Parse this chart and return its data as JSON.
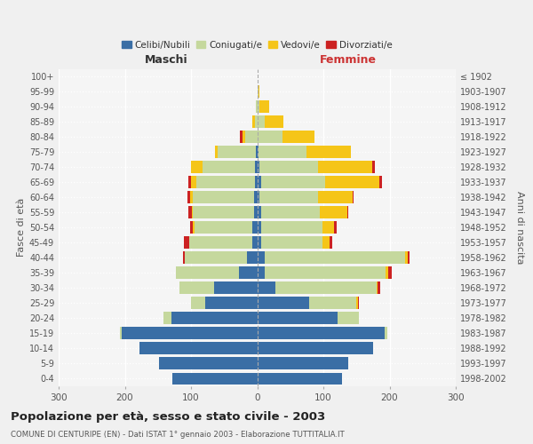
{
  "age_groups": [
    "0-4",
    "5-9",
    "10-14",
    "15-19",
    "20-24",
    "25-29",
    "30-34",
    "35-39",
    "40-44",
    "45-49",
    "50-54",
    "55-59",
    "60-64",
    "65-69",
    "70-74",
    "75-79",
    "80-84",
    "85-89",
    "90-94",
    "95-99",
    "100+"
  ],
  "birth_years": [
    "1998-2002",
    "1993-1997",
    "1988-1992",
    "1983-1987",
    "1978-1982",
    "1973-1977",
    "1968-1972",
    "1963-1967",
    "1958-1962",
    "1953-1957",
    "1948-1952",
    "1943-1947",
    "1938-1942",
    "1933-1937",
    "1928-1932",
    "1923-1927",
    "1918-1922",
    "1913-1917",
    "1908-1912",
    "1903-1907",
    "≤ 1902"
  ],
  "male": {
    "celibi": [
      128,
      148,
      178,
      205,
      130,
      78,
      65,
      28,
      15,
      8,
      7,
      5,
      5,
      4,
      4,
      2,
      0,
      0,
      0,
      0,
      0
    ],
    "coniugati": [
      0,
      0,
      0,
      3,
      12,
      22,
      52,
      95,
      95,
      95,
      88,
      92,
      92,
      88,
      78,
      58,
      18,
      4,
      2,
      0,
      0
    ],
    "vedovi": [
      0,
      0,
      0,
      0,
      0,
      0,
      0,
      0,
      0,
      0,
      2,
      2,
      4,
      8,
      18,
      4,
      4,
      4,
      0,
      0,
      0
    ],
    "divorziati": [
      0,
      0,
      0,
      0,
      0,
      0,
      0,
      0,
      2,
      8,
      5,
      5,
      4,
      4,
      0,
      0,
      4,
      0,
      0,
      0,
      0
    ]
  },
  "female": {
    "nubili": [
      128,
      138,
      175,
      193,
      122,
      78,
      28,
      12,
      12,
      6,
      6,
      6,
      4,
      6,
      4,
      2,
      0,
      0,
      0,
      0,
      0
    ],
    "coniugate": [
      0,
      0,
      0,
      4,
      32,
      72,
      152,
      182,
      212,
      92,
      92,
      88,
      88,
      97,
      88,
      72,
      38,
      12,
      4,
      2,
      0
    ],
    "vedove": [
      0,
      0,
      0,
      0,
      0,
      2,
      2,
      4,
      4,
      12,
      18,
      42,
      52,
      82,
      82,
      68,
      48,
      28,
      14,
      2,
      0
    ],
    "divorziate": [
      0,
      0,
      0,
      0,
      0,
      2,
      4,
      5,
      2,
      4,
      4,
      2,
      2,
      4,
      4,
      0,
      0,
      0,
      0,
      0,
      0
    ]
  },
  "colors": {
    "celibi": "#3a6ea5",
    "coniugati": "#c5d89d",
    "vedovi": "#f5c518",
    "divorziati": "#cc2222"
  },
  "xlim": 300,
  "title": "Popolazione per età, sesso e stato civile - 2003",
  "subtitle": "COMUNE DI CENTURIPE (EN) - Dati ISTAT 1° gennaio 2003 - Elaborazione TUTTITALIA.IT",
  "ylabel_left": "Fasce di età",
  "ylabel_right": "Anni di nascita",
  "xlabel_left": "Maschi",
  "xlabel_right": "Femmine",
  "bg_color": "#f0f0f0",
  "plot_bg": "#f5f5f5"
}
